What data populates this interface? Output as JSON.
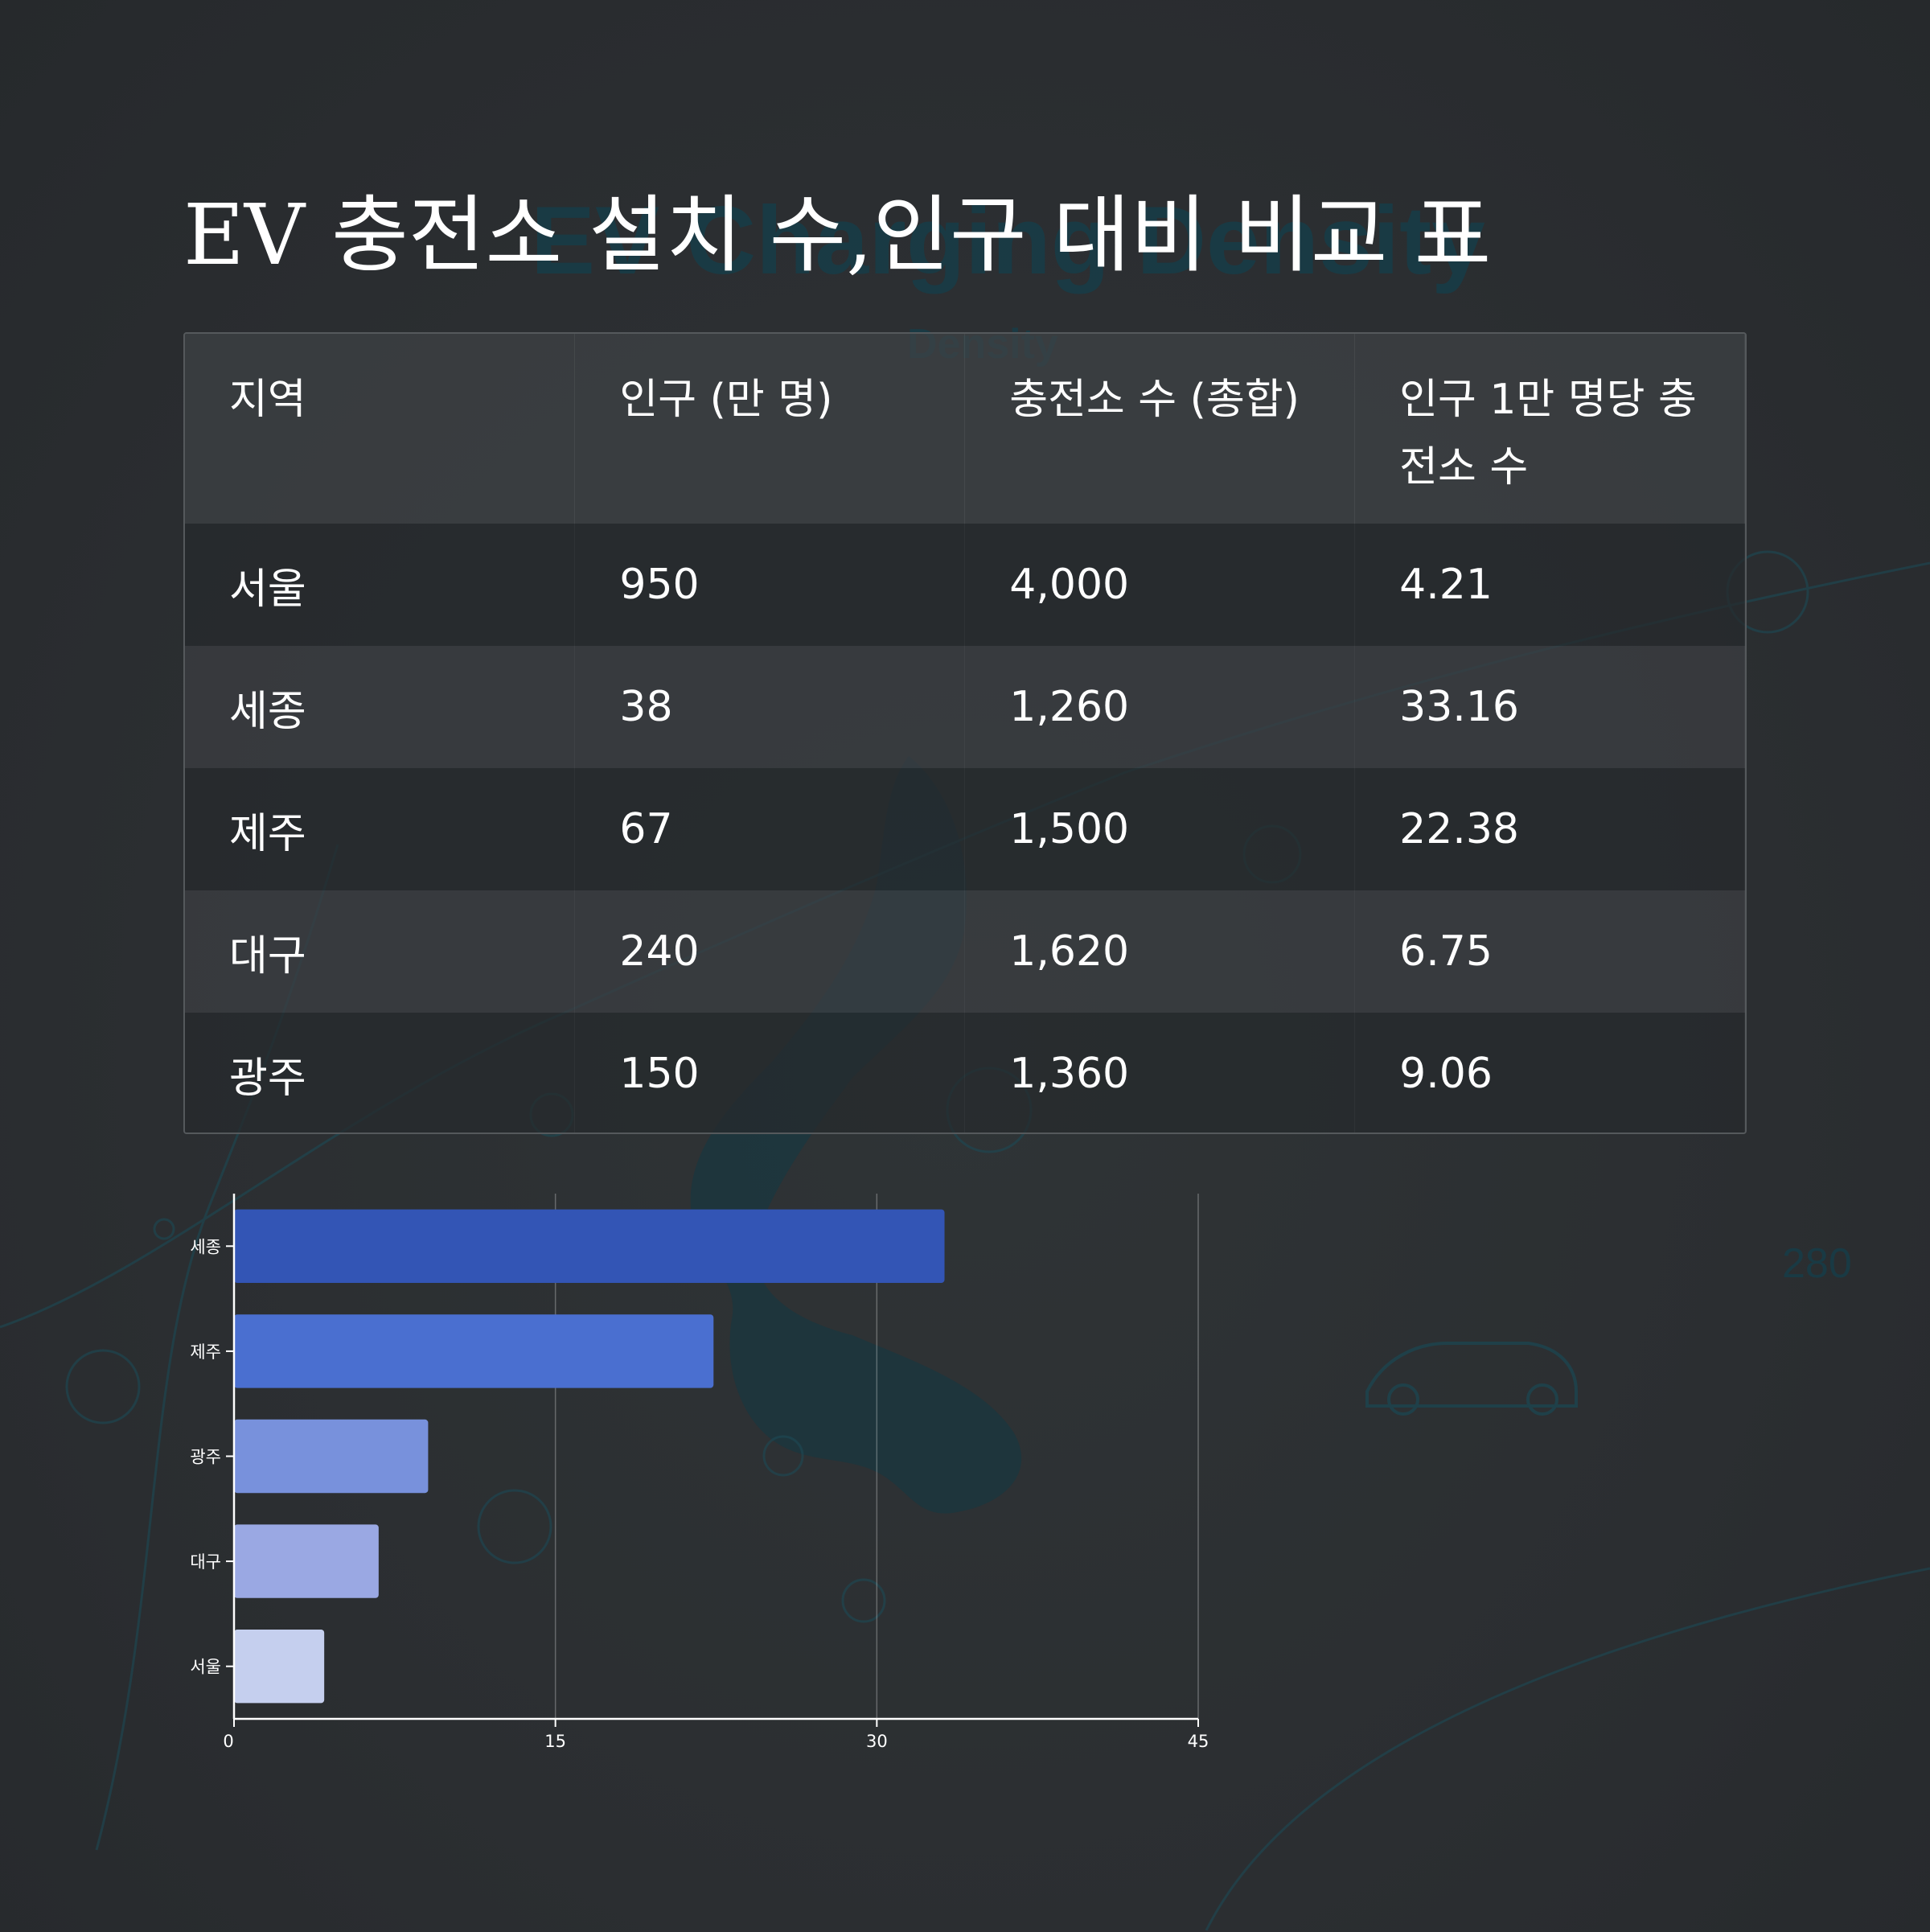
{
  "title": "EV 충전소 설치 수,인구 대비 비교 표",
  "table": {
    "columns": [
      "지역",
      "인구 (만 명)",
      "충전소 수 (총합)",
      "인구 1만 명당 충전소 수"
    ],
    "rows": [
      [
        "서울",
        "950",
        "4,000",
        "4.21"
      ],
      [
        "세종",
        "38",
        "1,260",
        "33.16"
      ],
      [
        "제주",
        "67",
        "1,500",
        "22.38"
      ],
      [
        "대구",
        "240",
        "1,620",
        "6.75"
      ],
      [
        "광주",
        "150",
        "1,360",
        "9.06"
      ]
    ]
  },
  "chart_data": {
    "type": "bar",
    "orientation": "horizontal",
    "categories": [
      "세종",
      "제주",
      "광주",
      "대구",
      "서울"
    ],
    "values": [
      33.16,
      22.38,
      9.06,
      6.75,
      4.21
    ],
    "xlim": [
      0,
      45
    ],
    "xticks": [
      0,
      15,
      30,
      45
    ],
    "grid": true,
    "colors": [
      "#3355b5",
      "#4a6fd0",
      "#7891dc",
      "#9aa8e3",
      "#c5cfee"
    ]
  },
  "background": {
    "color": "#2b2e31",
    "map_color": "#123944",
    "watermark_texts": [
      "EV Charging Density",
      "Density",
      "280"
    ]
  }
}
